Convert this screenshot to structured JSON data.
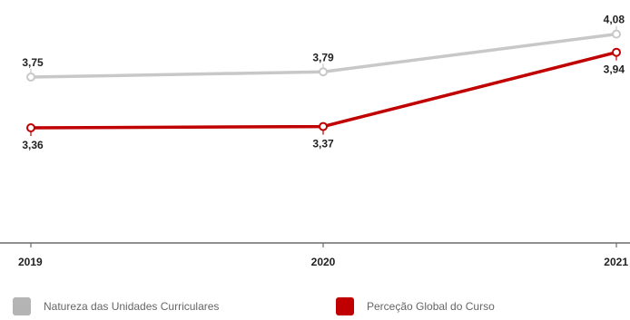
{
  "chart_data": {
    "type": "line",
    "categories": [
      "2019",
      "2020",
      "2021"
    ],
    "series": [
      {
        "name": "Natureza das Unidades Curriculares",
        "values": [
          3.75,
          3.79,
          4.08
        ],
        "labels": [
          "3,75",
          "3,79",
          "4,08"
        ],
        "color": "#c8c8c8"
      },
      {
        "name": "Perceção Global do Curso",
        "values": [
          3.36,
          3.37,
          3.94
        ],
        "labels": [
          "3,36",
          "3,37",
          "3,94"
        ],
        "color": "#c00000"
      }
    ],
    "ylim": [
      3.0,
      4.2
    ],
    "grid": false,
    "legend_position": "bottom"
  }
}
